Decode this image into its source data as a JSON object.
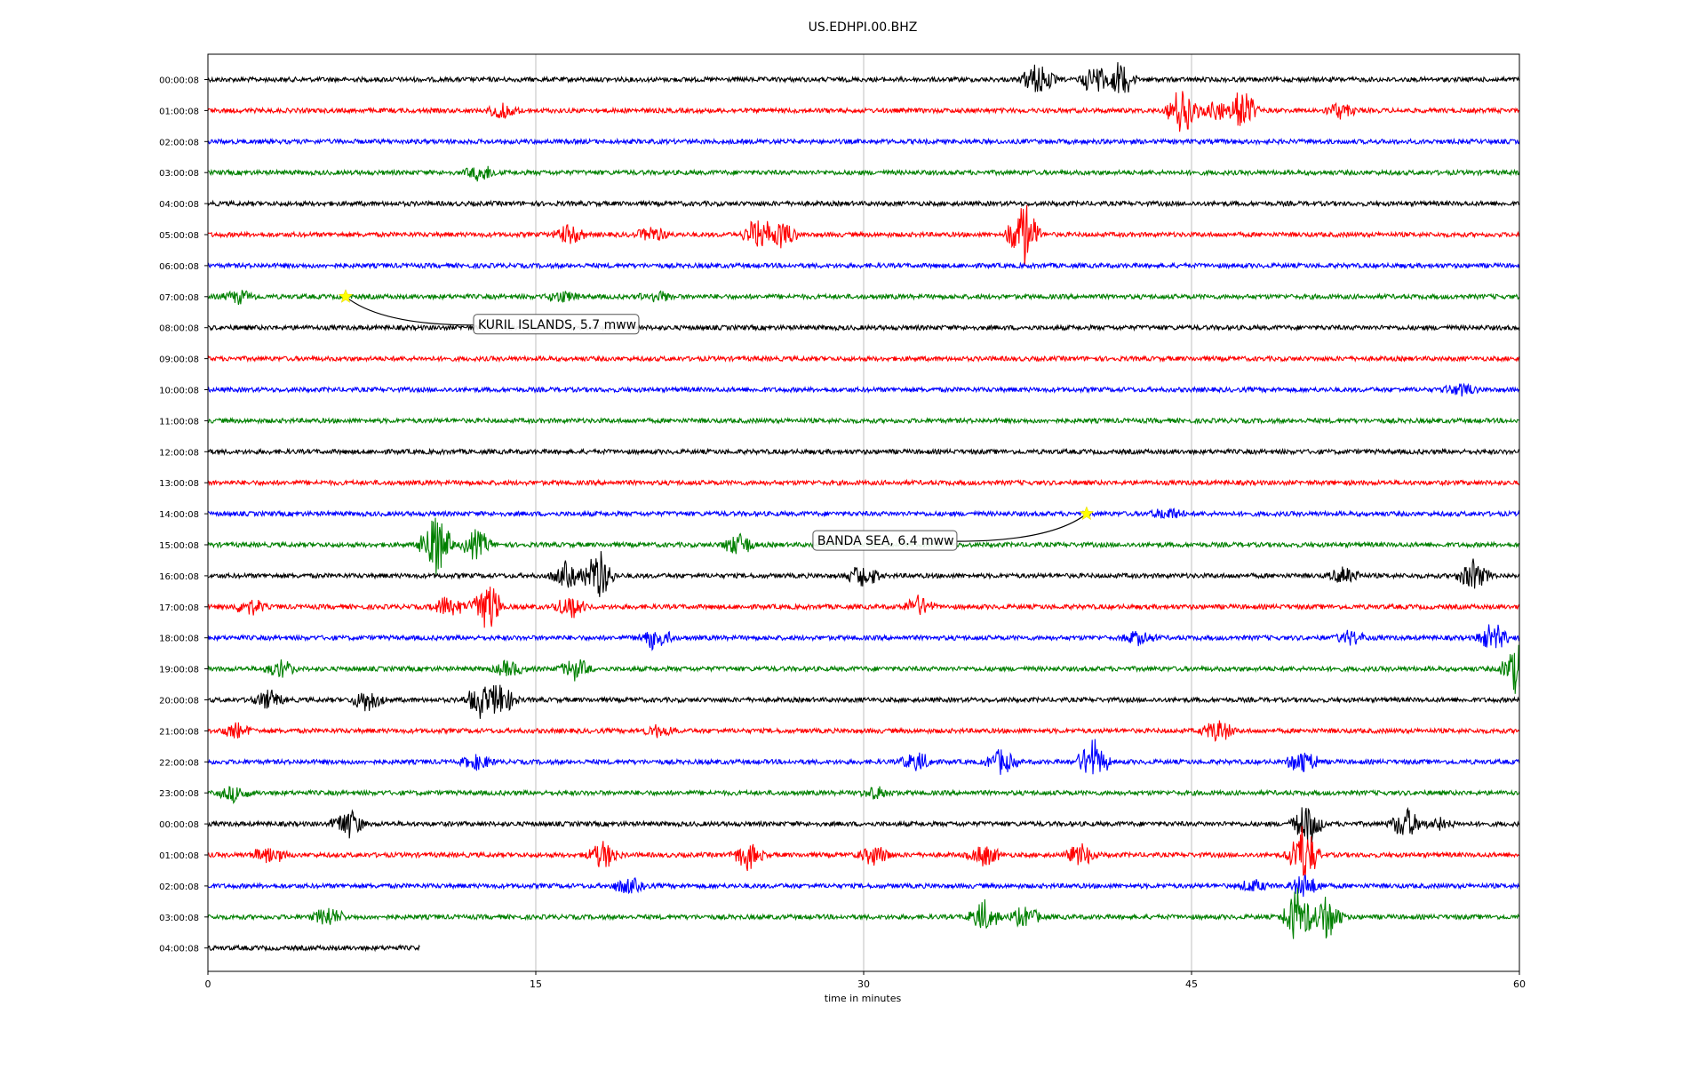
{
  "chart_data": {
    "type": "line",
    "title": "US.EDHPI.00.BHZ",
    "xlabel": "time in minutes",
    "ylabel": "",
    "xlim": [
      0,
      60
    ],
    "x_ticks": [
      0,
      15,
      30,
      45,
      60
    ],
    "x_tick_labels": [
      "0",
      "15",
      "30",
      "45",
      "60"
    ],
    "grid_x": true,
    "colors_cycle": [
      "#000000",
      "#ff0000",
      "#0000ff",
      "#008000"
    ],
    "rows": [
      {
        "label": "00:00:08",
        "color": "#000000",
        "end_minute": 60,
        "bursts": [
          {
            "t": 38.0,
            "amp": 1.0
          },
          {
            "t": 40.6,
            "amp": 0.7
          },
          {
            "t": 41.7,
            "amp": 0.9
          }
        ]
      },
      {
        "label": "01:00:08",
        "color": "#ff0000",
        "end_minute": 60,
        "bursts": [
          {
            "t": 13.5,
            "amp": 0.35
          },
          {
            "t": 44.6,
            "amp": 1.2
          },
          {
            "t": 46.2,
            "amp": 0.6
          },
          {
            "t": 47.3,
            "amp": 1.0
          },
          {
            "t": 51.8,
            "amp": 0.4
          }
        ]
      },
      {
        "label": "02:00:08",
        "color": "#0000ff",
        "end_minute": 60,
        "bursts": []
      },
      {
        "label": "03:00:08",
        "color": "#008000",
        "end_minute": 60,
        "bursts": [
          {
            "t": 12.5,
            "amp": 0.4
          }
        ]
      },
      {
        "label": "04:00:08",
        "color": "#000000",
        "end_minute": 60,
        "bursts": []
      },
      {
        "label": "05:00:08",
        "color": "#ff0000",
        "end_minute": 60,
        "bursts": [
          {
            "t": 16.5,
            "amp": 0.5
          },
          {
            "t": 20.3,
            "amp": 0.4
          },
          {
            "t": 25.2,
            "amp": 0.9
          },
          {
            "t": 26.2,
            "amp": 0.7
          },
          {
            "t": 37.3,
            "amp": 1.7
          }
        ]
      },
      {
        "label": "06:00:08",
        "color": "#0000ff",
        "end_minute": 60,
        "bursts": []
      },
      {
        "label": "07:00:08",
        "color": "#008000",
        "end_minute": 60,
        "bursts": [
          {
            "t": 1.4,
            "amp": 0.3
          },
          {
            "t": 16.2,
            "amp": 0.3
          },
          {
            "t": 20.5,
            "amp": 0.3
          }
        ]
      },
      {
        "label": "08:00:08",
        "color": "#000000",
        "end_minute": 60,
        "bursts": []
      },
      {
        "label": "09:00:08",
        "color": "#ff0000",
        "end_minute": 60,
        "bursts": []
      },
      {
        "label": "10:00:08",
        "color": "#0000ff",
        "end_minute": 60,
        "bursts": [
          {
            "t": 57.3,
            "amp": 0.3
          }
        ]
      },
      {
        "label": "11:00:08",
        "color": "#008000",
        "end_minute": 60,
        "bursts": []
      },
      {
        "label": "12:00:08",
        "color": "#000000",
        "end_minute": 60,
        "bursts": []
      },
      {
        "label": "13:00:08",
        "color": "#ff0000",
        "end_minute": 60,
        "bursts": []
      },
      {
        "label": "14:00:08",
        "color": "#0000ff",
        "end_minute": 60,
        "bursts": [
          {
            "t": 43.9,
            "amp": 0.3
          }
        ]
      },
      {
        "label": "15:00:08",
        "color": "#008000",
        "end_minute": 60,
        "bursts": [
          {
            "t": 10.4,
            "amp": 1.8
          },
          {
            "t": 12.3,
            "amp": 0.7
          },
          {
            "t": 24.3,
            "amp": 0.6
          }
        ]
      },
      {
        "label": "16:00:08",
        "color": "#000000",
        "end_minute": 60,
        "bursts": [
          {
            "t": 16.4,
            "amp": 0.6
          },
          {
            "t": 17.8,
            "amp": 1.4
          },
          {
            "t": 30.0,
            "amp": 0.6
          },
          {
            "t": 52.0,
            "amp": 0.4
          },
          {
            "t": 57.9,
            "amp": 0.8
          }
        ]
      },
      {
        "label": "17:00:08",
        "color": "#ff0000",
        "end_minute": 60,
        "bursts": [
          {
            "t": 1.9,
            "amp": 0.4
          },
          {
            "t": 11.0,
            "amp": 0.6
          },
          {
            "t": 12.7,
            "amp": 1.5
          },
          {
            "t": 16.6,
            "amp": 0.6
          },
          {
            "t": 32.5,
            "amp": 0.5
          }
        ]
      },
      {
        "label": "18:00:08",
        "color": "#0000ff",
        "end_minute": 60,
        "bursts": [
          {
            "t": 20.5,
            "amp": 0.6
          },
          {
            "t": 42.6,
            "amp": 0.35
          },
          {
            "t": 52.3,
            "amp": 0.35
          },
          {
            "t": 58.8,
            "amp": 0.8
          }
        ]
      },
      {
        "label": "19:00:08",
        "color": "#008000",
        "end_minute": 60,
        "bursts": [
          {
            "t": 3.3,
            "amp": 0.4
          },
          {
            "t": 13.8,
            "amp": 0.4
          },
          {
            "t": 16.8,
            "amp": 0.5
          },
          {
            "t": 59.9,
            "amp": 1.2
          }
        ]
      },
      {
        "label": "20:00:08",
        "color": "#000000",
        "end_minute": 60,
        "bursts": [
          {
            "t": 2.8,
            "amp": 0.5
          },
          {
            "t": 7.3,
            "amp": 0.6
          },
          {
            "t": 12.5,
            "amp": 0.8
          },
          {
            "t": 13.4,
            "amp": 0.9
          }
        ]
      },
      {
        "label": "21:00:08",
        "color": "#ff0000",
        "end_minute": 60,
        "bursts": [
          {
            "t": 1.3,
            "amp": 0.4
          },
          {
            "t": 20.6,
            "amp": 0.3
          },
          {
            "t": 46.2,
            "amp": 0.6
          }
        ]
      },
      {
        "label": "22:00:08",
        "color": "#0000ff",
        "end_minute": 60,
        "bursts": [
          {
            "t": 12.3,
            "amp": 0.4
          },
          {
            "t": 32.4,
            "amp": 0.5
          },
          {
            "t": 36.3,
            "amp": 0.6
          },
          {
            "t": 40.5,
            "amp": 1.1
          },
          {
            "t": 50.1,
            "amp": 0.6
          }
        ]
      },
      {
        "label": "23:00:08",
        "color": "#008000",
        "end_minute": 60,
        "bursts": [
          {
            "t": 1.2,
            "amp": 0.4
          },
          {
            "t": 30.6,
            "amp": 0.3
          }
        ]
      },
      {
        "label": "00:00:08",
        "color": "#000000",
        "end_minute": 60,
        "bursts": [
          {
            "t": 6.4,
            "amp": 0.8
          },
          {
            "t": 50.3,
            "amp": 1.0
          },
          {
            "t": 54.8,
            "amp": 0.8
          },
          {
            "t": 56.3,
            "amp": 0.3
          }
        ]
      },
      {
        "label": "01:00:08",
        "color": "#ff0000",
        "end_minute": 60,
        "bursts": [
          {
            "t": 2.8,
            "amp": 0.5
          },
          {
            "t": 18.1,
            "amp": 0.7
          },
          {
            "t": 24.7,
            "amp": 0.7
          },
          {
            "t": 30.5,
            "amp": 0.5
          },
          {
            "t": 35.5,
            "amp": 0.6
          },
          {
            "t": 40.0,
            "amp": 0.6
          },
          {
            "t": 50.1,
            "amp": 1.6
          }
        ]
      },
      {
        "label": "02:00:08",
        "color": "#0000ff",
        "end_minute": 60,
        "bursts": [
          {
            "t": 19.2,
            "amp": 0.4
          },
          {
            "t": 47.8,
            "amp": 0.3
          },
          {
            "t": 50.2,
            "amp": 0.6
          }
        ]
      },
      {
        "label": "03:00:08",
        "color": "#008000",
        "end_minute": 60,
        "bursts": [
          {
            "t": 5.5,
            "amp": 0.5
          },
          {
            "t": 35.5,
            "amp": 0.8
          },
          {
            "t": 37.4,
            "amp": 0.5
          },
          {
            "t": 49.9,
            "amp": 1.5
          },
          {
            "t": 51.2,
            "amp": 1.0
          }
        ]
      },
      {
        "label": "04:00:08",
        "color": "#000000",
        "end_minute": 9.7,
        "bursts": []
      }
    ],
    "annotations": [
      {
        "text": "KURIL ISLANDS, 5.7 mww",
        "marker_row": 7,
        "marker_minute": 6.3,
        "marker_color": "#ffff00"
      },
      {
        "text": "BANDA SEA, 6.4 mww",
        "marker_row": 14,
        "marker_minute": 40.2,
        "marker_color": "#ffff00"
      }
    ]
  }
}
